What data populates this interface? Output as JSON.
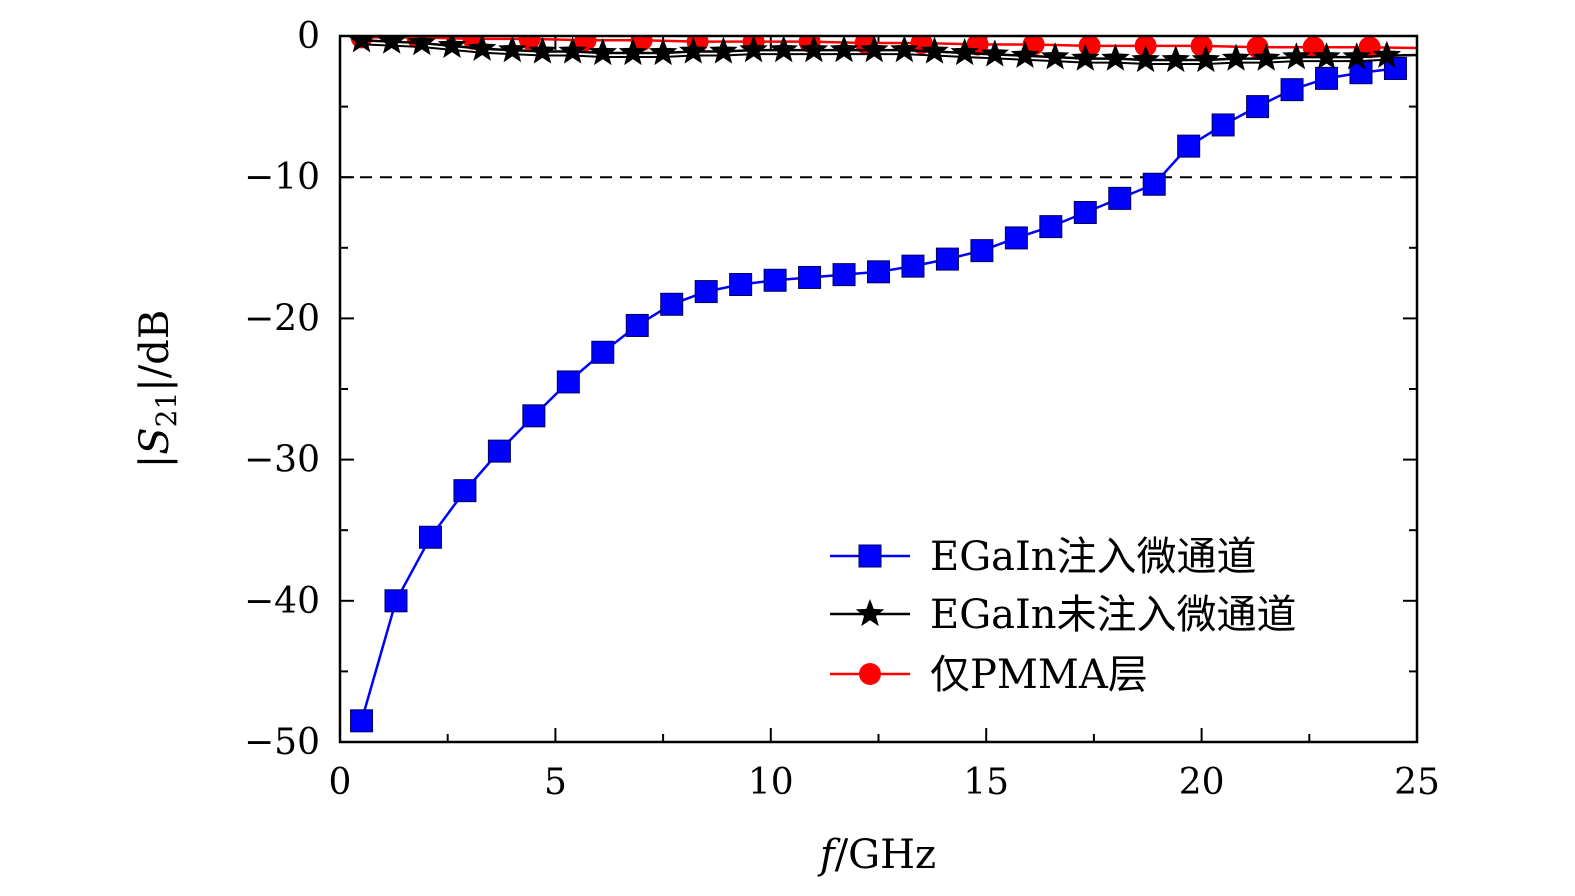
{
  "chart_data": {
    "type": "line",
    "title": "",
    "xlabel": "f/GHz",
    "ylabel": "|S21|/dB",
    "xlim": [
      0,
      25
    ],
    "ylim": [
      -50,
      0
    ],
    "xticks": [
      0,
      5,
      10,
      15,
      20,
      25
    ],
    "yticks": [
      0,
      -10,
      -20,
      -30,
      -40,
      -50
    ],
    "xtick_labels": [
      "0",
      "5",
      "10",
      "15",
      "20",
      "25"
    ],
    "ytick_labels": [
      "0",
      "−10",
      "−20",
      "−30",
      "−40",
      "−50"
    ],
    "reference_line": {
      "y": -10,
      "style": "dashed"
    },
    "legend_position": "bottom-right",
    "series": [
      {
        "name": "EGaIn注入微通道",
        "color": "#0000ff",
        "marker": "square",
        "x": [
          0.5,
          1.3,
          2.1,
          2.9,
          3.7,
          4.5,
          5.3,
          6.1,
          6.9,
          7.7,
          8.5,
          9.3,
          10.1,
          10.9,
          11.7,
          12.5,
          13.3,
          14.1,
          14.9,
          15.7,
          16.5,
          17.3,
          18.1,
          18.9,
          19.7,
          20.5,
          21.3,
          22.1,
          22.9,
          23.7,
          24.5
        ],
        "y": [
          -48.5,
          -40.0,
          -35.5,
          -32.2,
          -29.4,
          -26.9,
          -24.5,
          -22.4,
          -20.5,
          -19.0,
          -18.1,
          -17.6,
          -17.3,
          -17.1,
          -16.9,
          -16.7,
          -16.3,
          -15.8,
          -15.2,
          -14.3,
          -13.5,
          -12.5,
          -11.5,
          -10.5,
          -7.8,
          -6.3,
          -5.0,
          -3.8,
          -3.0,
          -2.6,
          -2.3
        ]
      },
      {
        "name": "EGaIn未注入微通道",
        "color": "#000000",
        "marker": "star",
        "x": [
          0.5,
          1.2,
          1.9,
          2.6,
          3.3,
          4.0,
          4.7,
          5.4,
          6.1,
          6.8,
          7.5,
          8.2,
          8.9,
          9.6,
          10.3,
          11.0,
          11.7,
          12.4,
          13.1,
          13.8,
          14.5,
          15.2,
          15.9,
          16.6,
          17.3,
          18.0,
          18.7,
          19.4,
          20.1,
          20.8,
          21.5,
          22.2,
          22.9,
          23.6,
          24.3
        ],
        "y": [
          -0.3,
          -0.4,
          -0.5,
          -0.7,
          -0.9,
          -1.0,
          -1.1,
          -1.1,
          -1.2,
          -1.2,
          -1.2,
          -1.1,
          -1.1,
          -1.0,
          -1.0,
          -1.0,
          -1.0,
          -1.0,
          -1.0,
          -1.1,
          -1.2,
          -1.3,
          -1.4,
          -1.5,
          -1.6,
          -1.6,
          -1.7,
          -1.7,
          -1.7,
          -1.6,
          -1.6,
          -1.5,
          -1.5,
          -1.5,
          -1.4
        ]
      },
      {
        "name": "仅PMMA层",
        "color": "#ff0000",
        "marker": "circle",
        "x": [
          0.5,
          1.8,
          3.1,
          4.4,
          5.7,
          7.0,
          8.3,
          9.6,
          10.9,
          12.2,
          13.5,
          14.8,
          16.1,
          17.4,
          18.7,
          20.0,
          21.3,
          22.6,
          23.9
        ],
        "y": [
          -0.1,
          -0.1,
          -0.2,
          -0.2,
          -0.3,
          -0.3,
          -0.4,
          -0.4,
          -0.4,
          -0.5,
          -0.5,
          -0.6,
          -0.6,
          -0.7,
          -0.7,
          -0.7,
          -0.8,
          -0.8,
          -0.8
        ]
      }
    ]
  }
}
